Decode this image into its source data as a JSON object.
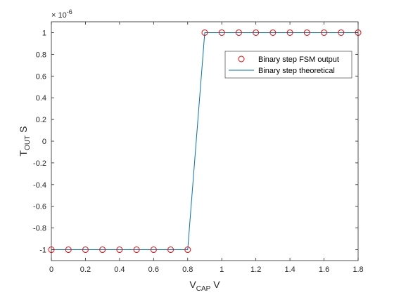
{
  "chart_data": {
    "type": "line",
    "x_scale_note": "",
    "y_exponent_label": "× 10",
    "y_exponent_power": "-6",
    "xlabel": {
      "main": "V",
      "sub": "CAP",
      "unit": " V"
    },
    "ylabel": {
      "main": "T",
      "sub": "OUT",
      "unit": " S"
    },
    "xlim": [
      0,
      1.8
    ],
    "ylim": [
      -1.1,
      1.1
    ],
    "x_ticks": [
      0,
      0.2,
      0.4,
      0.6,
      0.8,
      1,
      1.2,
      1.4,
      1.6,
      1.8
    ],
    "x_tick_labels": [
      "0",
      "0.2",
      "0.4",
      "0.6",
      "0.8",
      "1",
      "1.2",
      "1.4",
      "1.6",
      "1.8"
    ],
    "y_ticks": [
      -1,
      -0.8,
      -0.6,
      -0.4,
      -0.2,
      0,
      0.2,
      0.4,
      0.6,
      0.8,
      1
    ],
    "y_tick_labels": [
      "-1",
      "-0.8",
      "-0.6",
      "-0.4",
      "-0.2",
      "0",
      "0.2",
      "0.4",
      "0.6",
      "0.8",
      "1"
    ],
    "grid": false,
    "legend_position": "top-right",
    "series": [
      {
        "name": "Binary step FSM output",
        "style": "markers",
        "color": "#ff0000",
        "x": [
          0,
          0.1,
          0.2,
          0.3,
          0.4,
          0.5,
          0.6,
          0.7,
          0.8,
          0.9,
          1.0,
          1.1,
          1.2,
          1.3,
          1.4,
          1.5,
          1.6,
          1.7,
          1.8
        ],
        "y": [
          -1,
          -1,
          -1,
          -1,
          -1,
          -1,
          -1,
          -1,
          -1,
          1,
          1,
          1,
          1,
          1,
          1,
          1,
          1,
          1,
          1
        ]
      },
      {
        "name": "Binary step theoretical",
        "style": "line",
        "color": "#0072bd",
        "x": [
          0,
          0.1,
          0.2,
          0.3,
          0.4,
          0.5,
          0.6,
          0.7,
          0.8,
          0.9,
          1.0,
          1.1,
          1.2,
          1.3,
          1.4,
          1.5,
          1.6,
          1.7,
          1.8
        ],
        "y": [
          -1,
          -1,
          -1,
          -1,
          -1,
          -1,
          -1,
          -1,
          -1,
          1,
          1,
          1,
          1,
          1,
          1,
          1,
          1,
          1,
          1
        ]
      }
    ]
  }
}
